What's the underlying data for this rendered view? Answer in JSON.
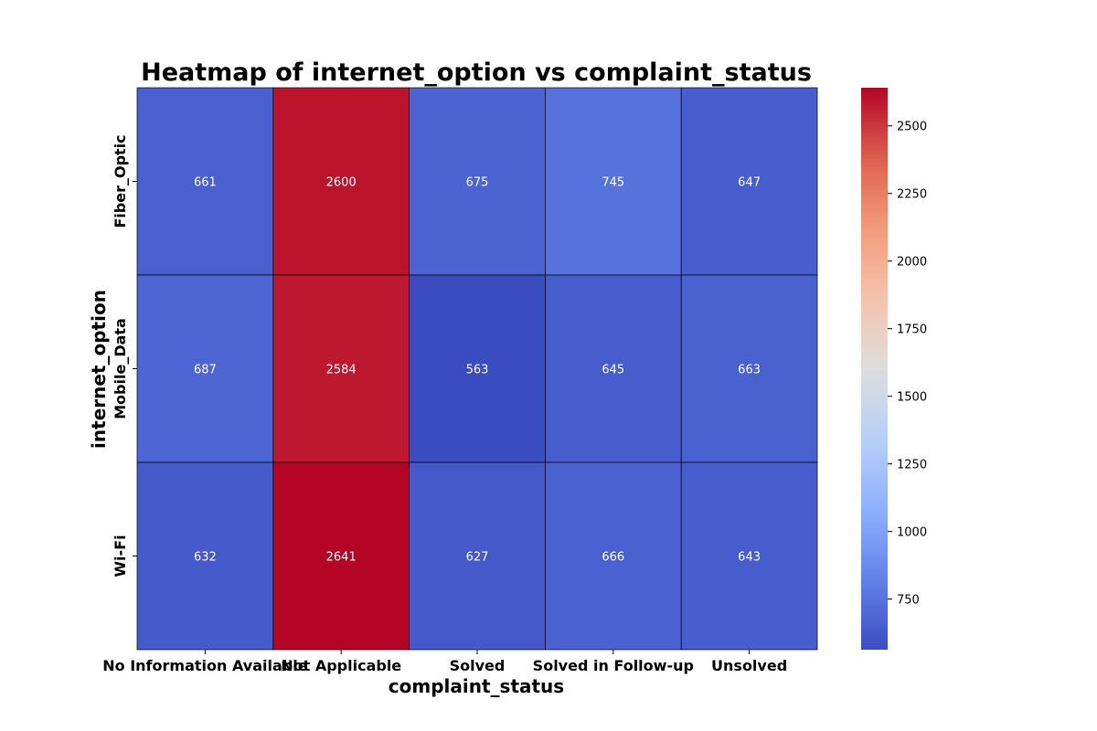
{
  "chart_data": {
    "type": "heatmap",
    "title": "Heatmap of internet_option vs complaint_status",
    "xlabel": "complaint_status",
    "ylabel": "internet_option",
    "x_categories": [
      "No Information Available",
      "Not Applicable",
      "Solved",
      "Solved in Follow-up",
      "Unsolved"
    ],
    "y_categories": [
      "Fiber_Optic",
      "Mobile_Data",
      "Wi-Fi"
    ],
    "values": [
      [
        661,
        2600,
        675,
        745,
        647
      ],
      [
        687,
        2584,
        563,
        645,
        663
      ],
      [
        632,
        2641,
        627,
        666,
        643
      ]
    ],
    "colormap": "coolwarm",
    "vmin": 563,
    "vmax": 2641,
    "colorbar_ticks": [
      750,
      1000,
      1250,
      1500,
      1750,
      2000,
      2250,
      2500
    ]
  }
}
